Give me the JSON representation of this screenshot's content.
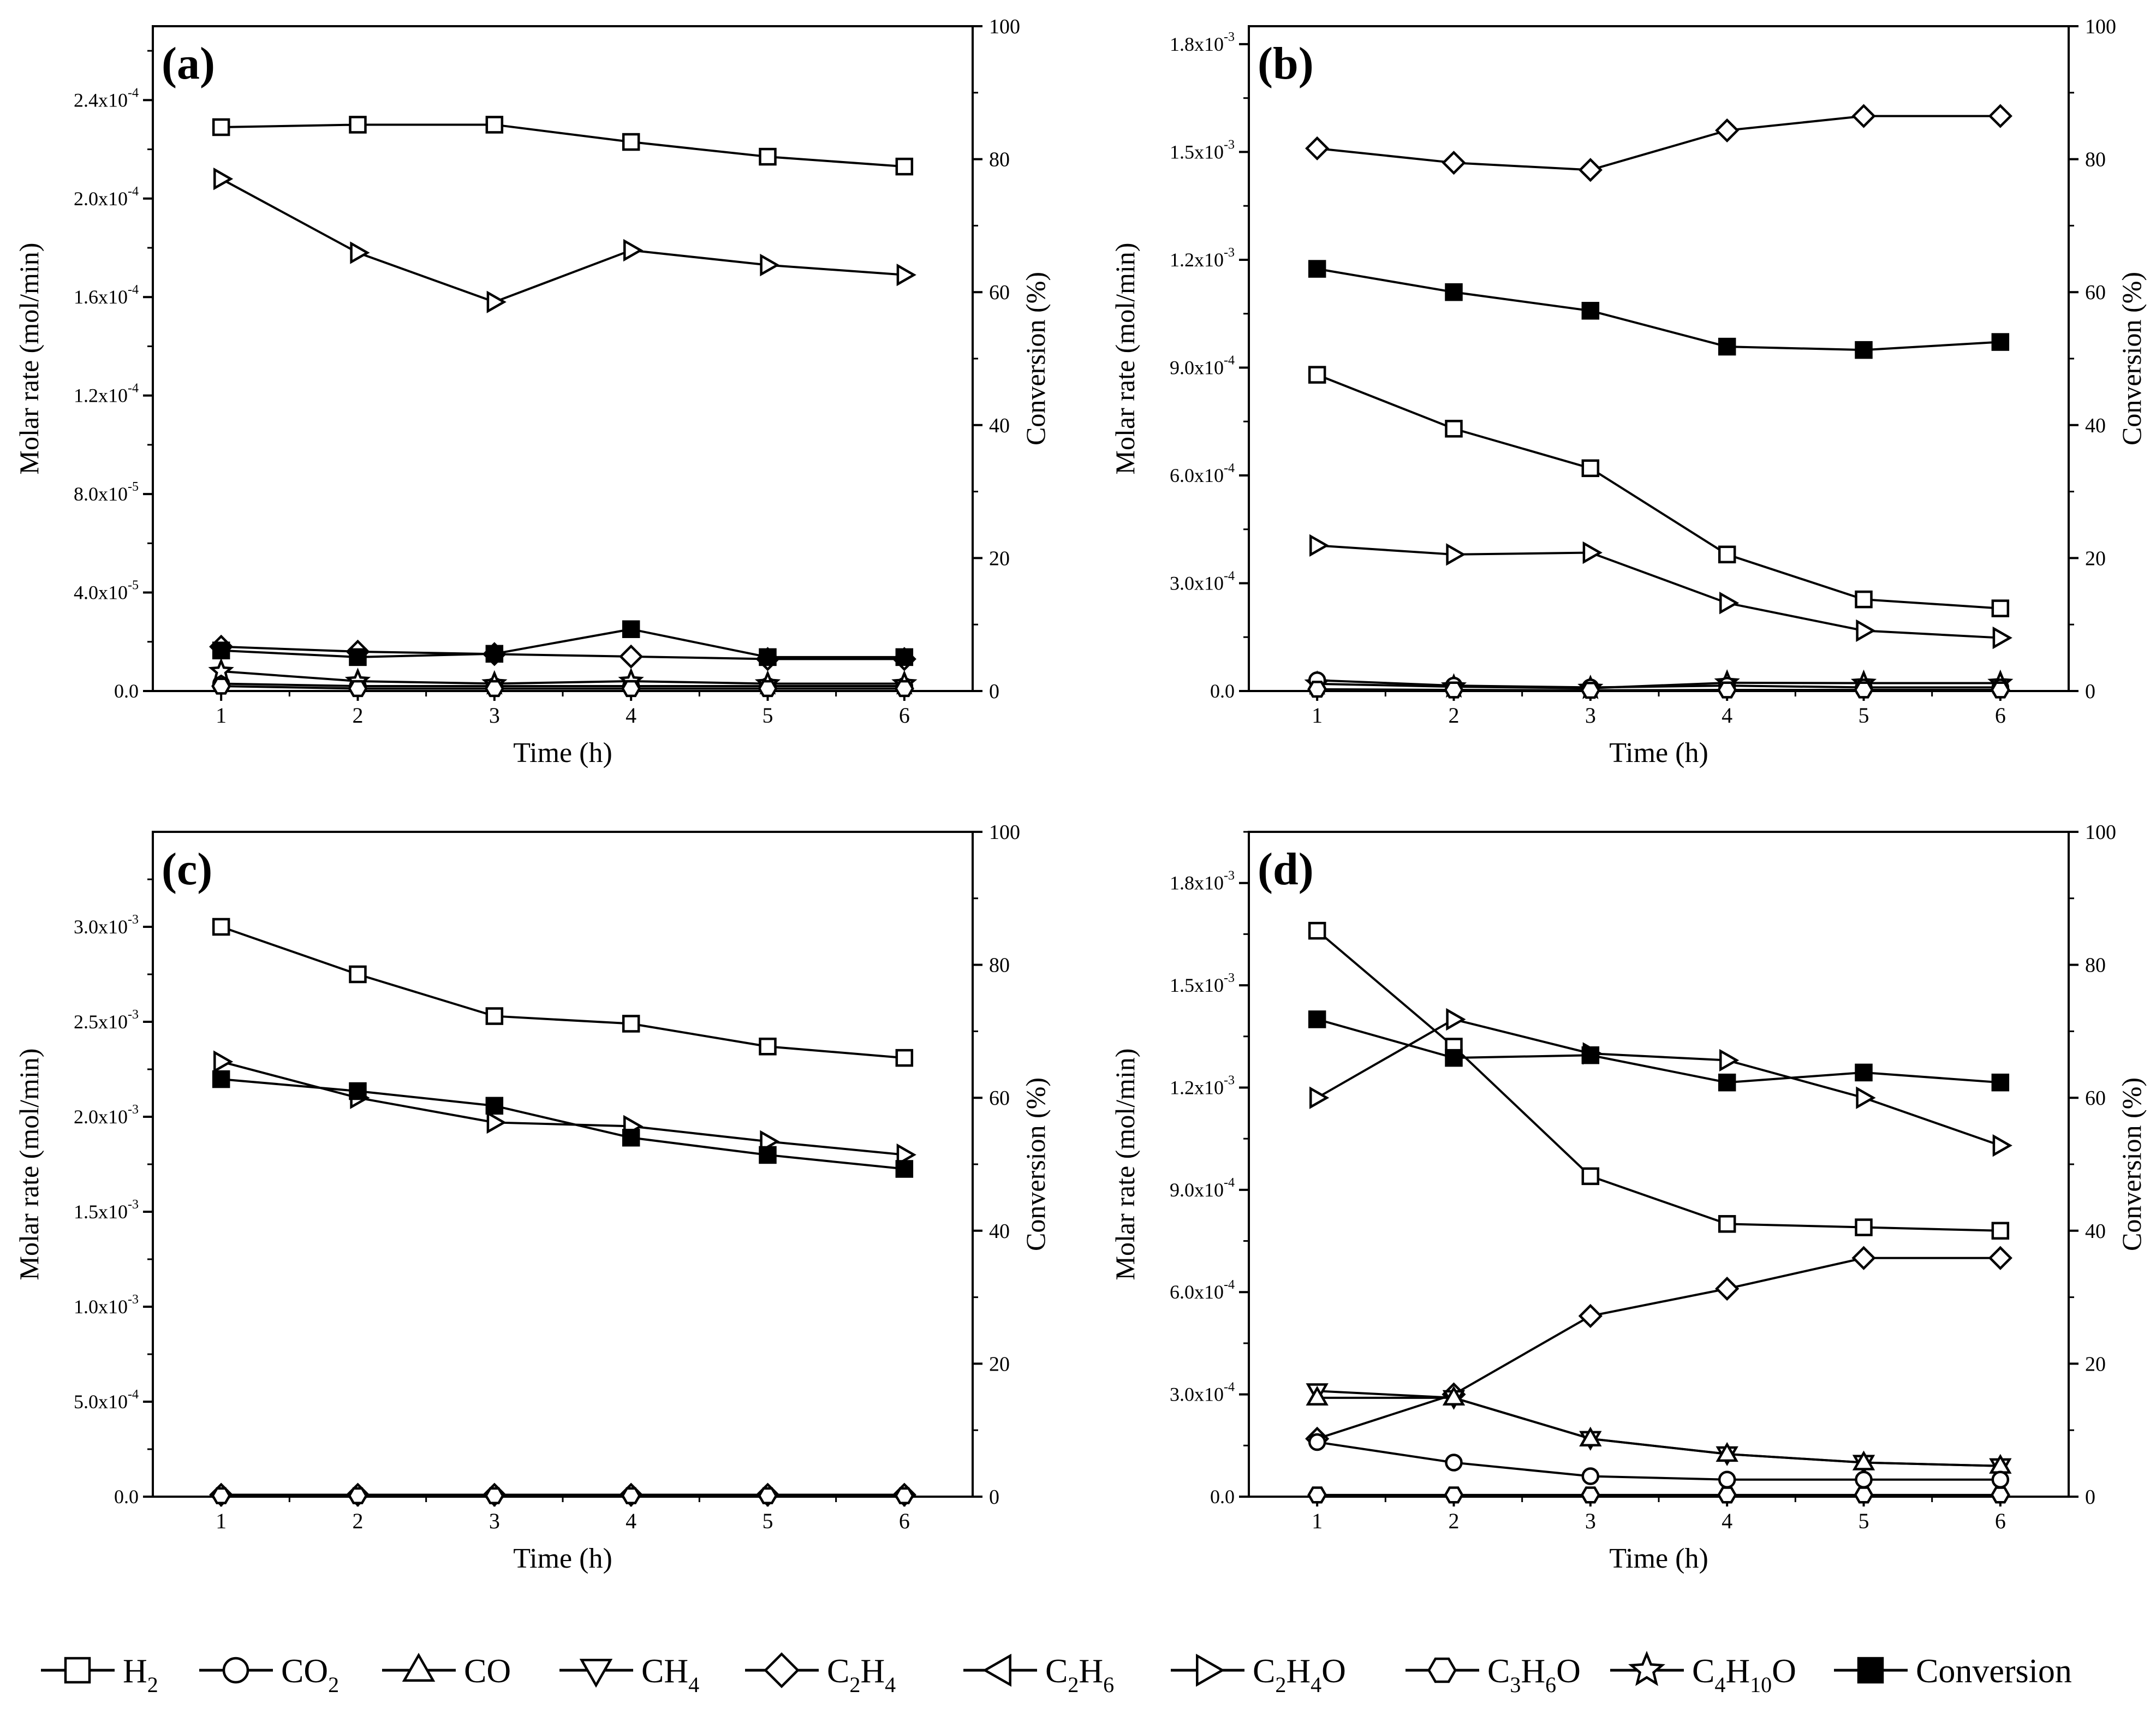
{
  "chart_data": {
    "type": "line",
    "legend": {
      "position": "bottom",
      "entries": [
        {
          "key": "H2",
          "label": "H",
          "sub": "2",
          "suffix": "",
          "marker": "square"
        },
        {
          "key": "CO2",
          "label": "CO",
          "sub": "2",
          "suffix": "",
          "marker": "circle"
        },
        {
          "key": "CO",
          "label": "CO",
          "sub": "",
          "suffix": "",
          "marker": "triangle-up"
        },
        {
          "key": "CH4",
          "label": "CH",
          "sub": "4",
          "suffix": "",
          "marker": "triangle-down"
        },
        {
          "key": "C2H4",
          "label": "C",
          "sub": "2",
          "mid": "H",
          "sub2": "4",
          "suffix": "",
          "marker": "diamond"
        },
        {
          "key": "C2H6",
          "label": "C",
          "sub": "2",
          "mid": "H",
          "sub2": "6",
          "suffix": "",
          "marker": "triangle-left"
        },
        {
          "key": "C2H4O",
          "label": "C",
          "sub": "2",
          "mid": "H",
          "sub2": "4",
          "suffix": "O",
          "marker": "triangle-right"
        },
        {
          "key": "C3H6O",
          "label": "C",
          "sub": "3",
          "mid": "H",
          "sub2": "6",
          "suffix": "O",
          "marker": "hexagon"
        },
        {
          "key": "C4H10O",
          "label": "C",
          "sub": "4",
          "mid": "H",
          "sub2": "10",
          "suffix": "O",
          "marker": "star"
        },
        {
          "key": "Conversion",
          "label": "Conversion",
          "sub": "",
          "suffix": "",
          "marker": "filled-square"
        }
      ]
    },
    "panels": [
      {
        "label": "(a)",
        "xlabel": "Time (h)",
        "ylabel": "Molar rate (mol/min)",
        "y2label": "Conversion (%)",
        "x": [
          1,
          2,
          3,
          4,
          5,
          6
        ],
        "xlim": [
          0.5,
          6.5
        ],
        "ylim": [
          0,
          0.00027
        ],
        "y2lim": [
          0,
          100
        ],
        "yticks": [
          {
            "v": 0,
            "m": "0.0",
            "e": ""
          },
          {
            "v": 4e-05,
            "m": "4.0x10",
            "e": "-5"
          },
          {
            "v": 8e-05,
            "m": "8.0x10",
            "e": "-5"
          },
          {
            "v": 0.00012,
            "m": "1.2x10",
            "e": "-4"
          },
          {
            "v": 0.00016,
            "m": "1.6x10",
            "e": "-4"
          },
          {
            "v": 0.0002,
            "m": "2.0x10",
            "e": "-4"
          },
          {
            "v": 0.00024,
            "m": "2.4x10",
            "e": "-4"
          }
        ],
        "y2ticks": [
          "0",
          "20",
          "40",
          "60",
          "80",
          "100"
        ],
        "xticks": [
          "1",
          "2",
          "3",
          "4",
          "5",
          "6"
        ],
        "series": [
          {
            "key": "H2",
            "values": [
              0.000229,
              0.00023,
              0.00023,
              0.000223,
              0.000217,
              0.000213
            ]
          },
          {
            "key": "C2H4O",
            "values": [
              0.000208,
              0.000178,
              0.000158,
              0.000179,
              0.000173,
              0.000169
            ]
          },
          {
            "key": "C2H4",
            "values": [
              1.8e-05,
              1.6e-05,
              1.5e-05,
              1.4e-05,
              1.3e-05,
              1.3e-05
            ]
          },
          {
            "key": "CO2",
            "values": [
              3e-06,
              2e-06,
              2e-06,
              2e-06,
              2e-06,
              2e-06
            ]
          },
          {
            "key": "C4H10O",
            "values": [
              8e-06,
              4e-06,
              3e-06,
              4e-06,
              3e-06,
              3e-06
            ]
          },
          {
            "key": "C3H6O",
            "values": [
              2e-06,
              1e-06,
              1e-06,
              1e-06,
              1e-06,
              1e-06
            ]
          },
          {
            "key": "Conversion",
            "axis": "right",
            "values": [
              6.1,
              5.1,
              5.6,
              9.3,
              5.1,
              5.1
            ]
          }
        ]
      },
      {
        "label": "(b)",
        "xlabel": "Time (h)",
        "ylabel": "Molar rate (mol/min)",
        "y2label": "Conversion (%)",
        "x": [
          1,
          2,
          3,
          4,
          5,
          6
        ],
        "xlim": [
          0.5,
          6.5
        ],
        "ylim": [
          0,
          0.00185
        ],
        "y2lim": [
          0,
          100
        ],
        "yticks": [
          {
            "v": 0,
            "m": "0.0",
            "e": ""
          },
          {
            "v": 0.0003,
            "m": "3.0x10",
            "e": "-4"
          },
          {
            "v": 0.0006,
            "m": "6.0x10",
            "e": "-4"
          },
          {
            "v": 0.0009,
            "m": "9.0x10",
            "e": "-4"
          },
          {
            "v": 0.0012,
            "m": "1.2x10",
            "e": "-3"
          },
          {
            "v": 0.0015,
            "m": "1.5x10",
            "e": "-3"
          },
          {
            "v": 0.0018,
            "m": "1.8x10",
            "e": "-3"
          }
        ],
        "y2ticks": [
          "0",
          "20",
          "40",
          "60",
          "80",
          "100"
        ],
        "xticks": [
          "1",
          "2",
          "3",
          "4",
          "5",
          "6"
        ],
        "series": [
          {
            "key": "C2H4",
            "values": [
              0.00151,
              0.00147,
              0.00145,
              0.00156,
              0.0016,
              0.0016
            ]
          },
          {
            "key": "H2",
            "values": [
              0.00088,
              0.00073,
              0.00062,
              0.00038,
              0.000255,
              0.00023
            ]
          },
          {
            "key": "C2H4O",
            "values": [
              0.000405,
              0.00038,
              0.000385,
              0.000245,
              0.000168,
              0.000148
            ]
          },
          {
            "key": "C4H10O",
            "values": [
              2e-05,
              1.2e-05,
              8e-06,
              2.3e-05,
              2.2e-05,
              2.2e-05
            ]
          },
          {
            "key": "CO2",
            "values": [
              3e-05,
              1.5e-05,
              1e-05,
              1.5e-05,
              1e-05,
              1e-05
            ]
          },
          {
            "key": "C3H6O",
            "values": [
              5e-06,
              3e-06,
              2e-06,
              3e-06,
              3e-06,
              3e-06
            ]
          },
          {
            "key": "Conversion",
            "axis": "right",
            "values": [
              63.5,
              60,
              57.2,
              51.8,
              51.3,
              52.5
            ]
          }
        ]
      },
      {
        "label": "(c)",
        "xlabel": "Time (h)",
        "ylabel": "Molar rate (mol/min)",
        "y2label": "Conversion (%)",
        "x": [
          1,
          2,
          3,
          4,
          5,
          6
        ],
        "xlim": [
          0.5,
          6.5
        ],
        "ylim": [
          0,
          0.0035
        ],
        "y2lim": [
          0,
          100
        ],
        "yticks": [
          {
            "v": 0,
            "m": "0.0",
            "e": ""
          },
          {
            "v": 0.0005,
            "m": "5.0x10",
            "e": "-4"
          },
          {
            "v": 0.001,
            "m": "1.0x10",
            "e": "-3"
          },
          {
            "v": 0.0015,
            "m": "1.5x10",
            "e": "-3"
          },
          {
            "v": 0.002,
            "m": "2.0x10",
            "e": "-3"
          },
          {
            "v": 0.0025,
            "m": "2.5x10",
            "e": "-3"
          },
          {
            "v": 0.003,
            "m": "3.0x10",
            "e": "-3"
          }
        ],
        "y2ticks": [
          "0",
          "20",
          "40",
          "60",
          "80",
          "100"
        ],
        "xticks": [
          "1",
          "2",
          "3",
          "4",
          "5",
          "6"
        ],
        "series": [
          {
            "key": "H2",
            "values": [
              0.003,
              0.00275,
              0.00253,
              0.00249,
              0.00237,
              0.00231
            ]
          },
          {
            "key": "C2H4O",
            "values": [
              0.00229,
              0.0021,
              0.00197,
              0.00195,
              0.00187,
              0.0018
            ]
          },
          {
            "key": "C2H4",
            "values": [
              1e-05,
              1e-05,
              1e-05,
              1e-05,
              1e-05,
              1e-05
            ]
          },
          {
            "key": "C3H6O",
            "values": [
              5e-06,
              5e-06,
              5e-06,
              5e-06,
              5e-06,
              5e-06
            ]
          },
          {
            "key": "Conversion",
            "axis": "right",
            "values": [
              62.8,
              61,
              58.8,
              54,
              51.4,
              49.3
            ]
          }
        ]
      },
      {
        "label": "(d)",
        "xlabel": "Time (h)",
        "ylabel": "Molar rate (mol/min)",
        "y2label": "Conversion (%)",
        "x": [
          1,
          2,
          3,
          4,
          5,
          6
        ],
        "xlim": [
          0.5,
          6.5
        ],
        "ylim": [
          0,
          0.00195
        ],
        "y2lim": [
          0,
          100
        ],
        "yticks": [
          {
            "v": 0,
            "m": "0.0",
            "e": ""
          },
          {
            "v": 0.0003,
            "m": "3.0x10",
            "e": "-4"
          },
          {
            "v": 0.0006,
            "m": "6.0x10",
            "e": "-4"
          },
          {
            "v": 0.0009,
            "m": "9.0x10",
            "e": "-4"
          },
          {
            "v": 0.0012,
            "m": "1.2x10",
            "e": "-3"
          },
          {
            "v": 0.0015,
            "m": "1.5x10",
            "e": "-3"
          },
          {
            "v": 0.0018,
            "m": "1.8x10",
            "e": "-3"
          }
        ],
        "y2ticks": [
          "0",
          "20",
          "40",
          "60",
          "80",
          "100"
        ],
        "xticks": [
          "1",
          "2",
          "3",
          "4",
          "5",
          "6"
        ],
        "series": [
          {
            "key": "H2",
            "values": [
              0.00166,
              0.00132,
              0.00094,
              0.0008,
              0.00079,
              0.00078
            ]
          },
          {
            "key": "C2H4O",
            "values": [
              0.00117,
              0.0014,
              0.0013,
              0.00128,
              0.00117,
              0.00103
            ]
          },
          {
            "key": "C2H4",
            "values": [
              0.00017,
              0.0003,
              0.00053,
              0.00061,
              0.0007,
              0.0007
            ]
          },
          {
            "key": "CH4",
            "values": [
              0.00031,
              0.00029,
              0.00017,
              0.000125,
              0.0001,
              9e-05
            ]
          },
          {
            "key": "CO",
            "values": [
              0.00029,
              0.00029,
              0.00017,
              0.000125,
              0.0001,
              9e-05
            ]
          },
          {
            "key": "CO2",
            "values": [
              0.00016,
              0.0001,
              6e-05,
              5e-05,
              5e-05,
              5e-05
            ]
          },
          {
            "key": "C3H6O",
            "values": [
              5e-06,
              5e-06,
              5e-06,
              5e-06,
              5e-06,
              5e-06
            ]
          },
          {
            "key": "Conversion",
            "axis": "right",
            "values": [
              71.8,
              66,
              66.4,
              62.3,
              63.8,
              62.3
            ]
          }
        ]
      }
    ]
  }
}
